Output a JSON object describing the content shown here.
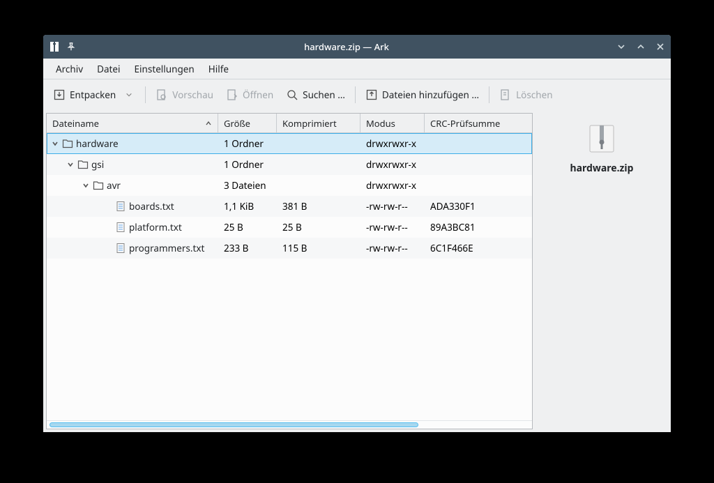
{
  "window": {
    "title": "hardware.zip — Ark"
  },
  "menubar": {
    "archive": "Archiv",
    "file": "Datei",
    "settings": "Einstellungen",
    "help": "Hilfe"
  },
  "toolbar": {
    "extract": "Entpacken",
    "preview": "Vorschau",
    "open": "Öffnen",
    "search": "Suchen …",
    "add_files": "Dateien hinzufügen …",
    "delete": "Löschen"
  },
  "columns": {
    "name": "Dateiname",
    "size": "Größe",
    "compressed": "Komprimiert",
    "mode": "Modus",
    "crc": "CRC-Prüfsumme"
  },
  "column_widths": {
    "name": 246,
    "size": 84,
    "compressed": 120,
    "mode": 92,
    "crc": 146
  },
  "rows": [
    {
      "indent": 0,
      "expanded": true,
      "type": "folder",
      "name": "hardware",
      "size": "1 Ordner",
      "compressed": "",
      "mode": "drwxrwxr-x",
      "crc": "",
      "selected": true,
      "alt": false
    },
    {
      "indent": 1,
      "expanded": true,
      "type": "folder",
      "name": "gsi",
      "size": "1 Ordner",
      "compressed": "",
      "mode": "drwxrwxr-x",
      "crc": "",
      "selected": false,
      "alt": true
    },
    {
      "indent": 2,
      "expanded": true,
      "type": "folder",
      "name": "avr",
      "size": "3 Dateien",
      "compressed": "",
      "mode": "drwxrwxr-x",
      "crc": "",
      "selected": false,
      "alt": false
    },
    {
      "indent": 3,
      "expanded": false,
      "type": "file",
      "name": "boards.txt",
      "size": "1,1 KiB",
      "compressed": "381 B",
      "mode": "-rw-rw-r--",
      "crc": "ADA330F1",
      "selected": false,
      "alt": true
    },
    {
      "indent": 3,
      "expanded": false,
      "type": "file",
      "name": "platform.txt",
      "size": "25 B",
      "compressed": "25 B",
      "mode": "-rw-rw-r--",
      "crc": "89A3BC81",
      "selected": false,
      "alt": false
    },
    {
      "indent": 3,
      "expanded": false,
      "type": "file",
      "name": "programmers.txt",
      "size": "233 B",
      "compressed": "115 B",
      "mode": "-rw-rw-r--",
      "crc": "6C1F466E",
      "selected": false,
      "alt": true
    }
  ],
  "side": {
    "filename": "hardware.zip"
  },
  "colors": {
    "titlebar_bg": "#405261",
    "window_bg": "#eff0f1",
    "selection_bg": "#d6ecf8",
    "selection_border": "#3daee9",
    "alt_row_bg": "#f6f7f8",
    "border": "#b6b9bd",
    "text": "#232629",
    "disabled_text": "#a1a6ab",
    "scroll_thumb": "#a7d8ef",
    "scroll_thumb_border": "#56bef0"
  }
}
